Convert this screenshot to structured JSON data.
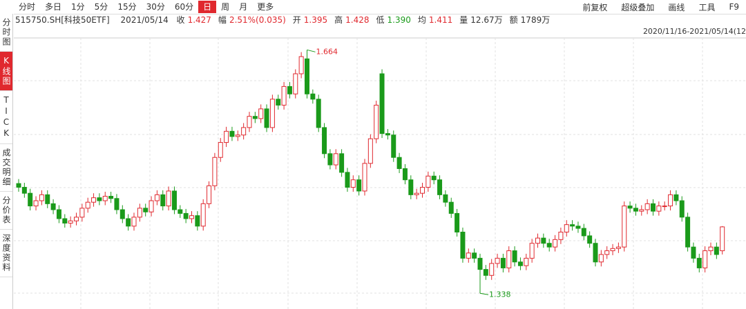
{
  "toolbar": {
    "tabs": [
      "分时",
      "多日",
      "1分",
      "5分",
      "15分",
      "30分",
      "60分",
      "日",
      "周",
      "月",
      "更多"
    ],
    "active_tab": "日",
    "right": [
      "前复权",
      "超级叠加",
      "画线",
      "工具",
      "F9"
    ]
  },
  "sidebar": {
    "items": [
      "分时图",
      "K线图",
      "TICK",
      "成交明细",
      "分价表",
      "深度资料"
    ],
    "active": "K线图"
  },
  "info": {
    "code": "515750.SH[科技50ETF]",
    "date": "2021/05/14",
    "fields": [
      {
        "label": "收",
        "value": "1.427",
        "color": "#e0282e"
      },
      {
        "label": "幅",
        "value": "2.51%(0.035)",
        "color": "#e0282e"
      },
      {
        "label": "开",
        "value": "1.395",
        "color": "#e0282e"
      },
      {
        "label": "高",
        "value": "1.428",
        "color": "#e0282e"
      },
      {
        "label": "低",
        "value": "1.390",
        "color": "#1a9a1a"
      },
      {
        "label": "均",
        "value": "1.411",
        "color": "#e0282e"
      },
      {
        "label": "量",
        "value": "12.67万",
        "color": "#333333"
      },
      {
        "label": "额",
        "value": "1789万",
        "color": "#333333"
      }
    ]
  },
  "range_label": "2020/11/16-2021/05/14(12",
  "chart_data": {
    "type": "candlestick",
    "ylim": [
      1.317,
      1.68
    ],
    "up_color": "#e0282e",
    "down_color": "#1a9a1a",
    "open": [
      1.485,
      1.48,
      1.472,
      1.455,
      1.462,
      1.47,
      1.458,
      1.45,
      1.438,
      1.432,
      1.435,
      1.44,
      1.452,
      1.46,
      1.466,
      1.462,
      1.468,
      1.465,
      1.45,
      1.438,
      1.428,
      1.44,
      1.452,
      1.447,
      1.462,
      1.47,
      1.455,
      1.475,
      1.45,
      1.445,
      1.438,
      1.442,
      1.428,
      1.458,
      1.482,
      1.52,
      1.54,
      1.555,
      1.548,
      1.55,
      1.56,
      1.575,
      1.572,
      1.585,
      1.56,
      1.598,
      1.59,
      1.615,
      1.605,
      1.632,
      1.652,
      1.605,
      1.598,
      1.56,
      1.525,
      1.51,
      1.525,
      1.5,
      1.48,
      1.49,
      1.475,
      1.512,
      1.545,
      1.632,
      1.552,
      1.55,
      1.52,
      1.505,
      1.49,
      1.47,
      1.472,
      1.48,
      1.495,
      1.49,
      1.47,
      1.46,
      1.445,
      1.42,
      1.385,
      1.392,
      1.385,
      1.37,
      1.362,
      1.378,
      1.385,
      1.372,
      1.395,
      1.38,
      1.375,
      1.385,
      1.405,
      1.412,
      1.405,
      1.4,
      1.41,
      1.42,
      1.43,
      1.428,
      1.425,
      1.415,
      1.405,
      1.38,
      1.39,
      1.395,
      1.398,
      1.4,
      1.455,
      1.452,
      1.448,
      1.45,
      1.458,
      1.448,
      1.455,
      1.455,
      1.47,
      1.462,
      1.44,
      1.4,
      1.385,
      1.372,
      1.395,
      1.4,
      1.395
    ],
    "high": [
      1.491,
      1.486,
      1.478,
      1.468,
      1.476,
      1.476,
      1.464,
      1.456,
      1.444,
      1.441,
      1.446,
      1.458,
      1.466,
      1.472,
      1.472,
      1.474,
      1.474,
      1.471,
      1.456,
      1.444,
      1.446,
      1.458,
      1.458,
      1.468,
      1.476,
      1.476,
      1.481,
      1.481,
      1.456,
      1.451,
      1.448,
      1.448,
      1.464,
      1.488,
      1.526,
      1.546,
      1.561,
      1.561,
      1.556,
      1.566,
      1.581,
      1.581,
      1.591,
      1.591,
      1.604,
      1.604,
      1.621,
      1.621,
      1.638,
      1.661,
      1.664,
      1.611,
      1.604,
      1.566,
      1.531,
      1.531,
      1.531,
      1.506,
      1.496,
      1.496,
      1.518,
      1.551,
      1.596,
      1.638,
      1.558,
      1.556,
      1.526,
      1.511,
      1.496,
      1.478,
      1.486,
      1.501,
      1.501,
      1.496,
      1.476,
      1.466,
      1.451,
      1.426,
      1.398,
      1.398,
      1.391,
      1.376,
      1.384,
      1.391,
      1.391,
      1.401,
      1.401,
      1.386,
      1.391,
      1.411,
      1.418,
      1.418,
      1.411,
      1.416,
      1.426,
      1.436,
      1.436,
      1.434,
      1.431,
      1.421,
      1.411,
      1.396,
      1.401,
      1.404,
      1.406,
      1.461,
      1.461,
      1.458,
      1.456,
      1.464,
      1.464,
      1.461,
      1.461,
      1.476,
      1.476,
      1.468,
      1.446,
      1.406,
      1.391,
      1.401,
      1.406,
      1.406,
      1.428
    ],
    "low": [
      1.474,
      1.466,
      1.449,
      1.449,
      1.456,
      1.452,
      1.444,
      1.432,
      1.426,
      1.426,
      1.429,
      1.434,
      1.446,
      1.454,
      1.456,
      1.456,
      1.459,
      1.444,
      1.432,
      1.422,
      1.422,
      1.434,
      1.441,
      1.441,
      1.456,
      1.449,
      1.449,
      1.444,
      1.439,
      1.432,
      1.432,
      1.422,
      1.422,
      1.452,
      1.476,
      1.514,
      1.534,
      1.542,
      1.542,
      1.544,
      1.554,
      1.566,
      1.566,
      1.554,
      1.554,
      1.584,
      1.584,
      1.599,
      1.599,
      1.626,
      1.599,
      1.592,
      1.554,
      1.519,
      1.504,
      1.504,
      1.494,
      1.474,
      1.474,
      1.469,
      1.469,
      1.506,
      1.539,
      1.546,
      1.544,
      1.514,
      1.499,
      1.484,
      1.464,
      1.464,
      1.466,
      1.474,
      1.484,
      1.464,
      1.454,
      1.439,
      1.414,
      1.379,
      1.379,
      1.379,
      1.338,
      1.356,
      1.356,
      1.372,
      1.366,
      1.366,
      1.374,
      1.369,
      1.369,
      1.379,
      1.399,
      1.399,
      1.394,
      1.394,
      1.404,
      1.414,
      1.422,
      1.419,
      1.409,
      1.399,
      1.374,
      1.374,
      1.384,
      1.389,
      1.392,
      1.394,
      1.446,
      1.442,
      1.442,
      1.444,
      1.442,
      1.442,
      1.449,
      1.449,
      1.456,
      1.434,
      1.394,
      1.379,
      1.366,
      1.366,
      1.389,
      1.384,
      1.39
    ],
    "close": [
      1.48,
      1.472,
      1.455,
      1.462,
      1.47,
      1.458,
      1.45,
      1.438,
      1.432,
      1.435,
      1.44,
      1.452,
      1.46,
      1.466,
      1.462,
      1.468,
      1.465,
      1.45,
      1.438,
      1.428,
      1.44,
      1.452,
      1.447,
      1.462,
      1.47,
      1.455,
      1.475,
      1.45,
      1.445,
      1.438,
      1.442,
      1.428,
      1.458,
      1.482,
      1.52,
      1.54,
      1.555,
      1.548,
      1.55,
      1.56,
      1.575,
      1.572,
      1.585,
      1.56,
      1.598,
      1.59,
      1.615,
      1.605,
      1.632,
      1.655,
      1.605,
      1.598,
      1.56,
      1.525,
      1.51,
      1.525,
      1.5,
      1.48,
      1.49,
      1.475,
      1.512,
      1.545,
      1.59,
      1.552,
      1.55,
      1.52,
      1.505,
      1.49,
      1.47,
      1.472,
      1.48,
      1.495,
      1.49,
      1.47,
      1.46,
      1.445,
      1.42,
      1.385,
      1.392,
      1.385,
      1.37,
      1.362,
      1.378,
      1.385,
      1.372,
      1.395,
      1.38,
      1.375,
      1.385,
      1.405,
      1.412,
      1.405,
      1.4,
      1.41,
      1.42,
      1.43,
      1.428,
      1.425,
      1.415,
      1.405,
      1.38,
      1.39,
      1.395,
      1.398,
      1.4,
      1.455,
      1.452,
      1.448,
      1.45,
      1.458,
      1.448,
      1.455,
      1.455,
      1.47,
      1.462,
      1.44,
      1.4,
      1.385,
      1.372,
      1.395,
      1.4,
      1.39,
      1.427
    ]
  }
}
